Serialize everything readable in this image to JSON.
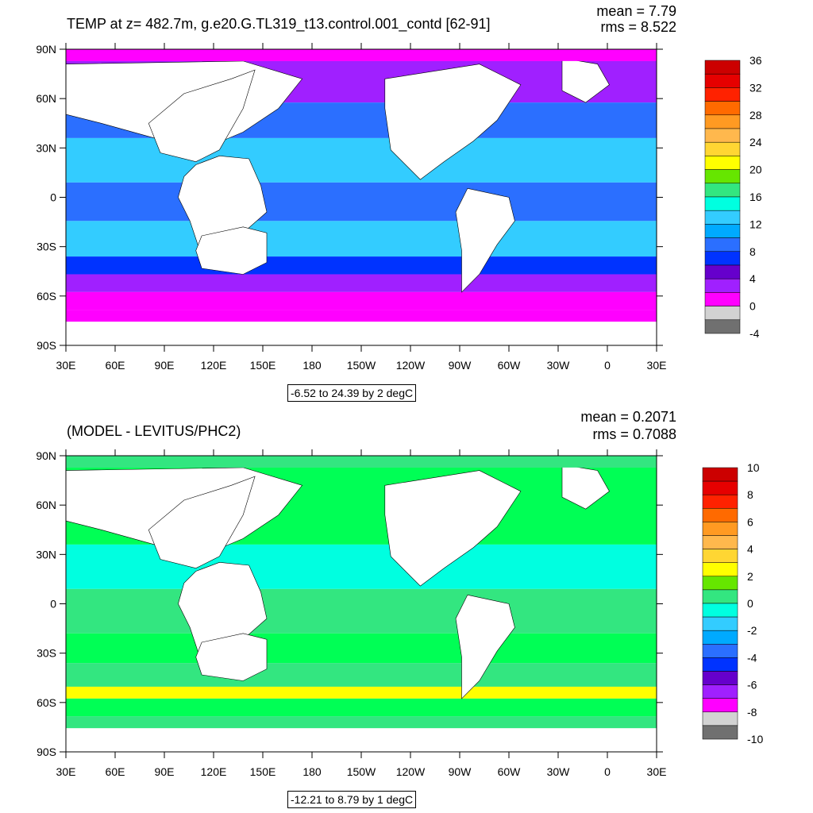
{
  "panels": [
    {
      "title": "TEMP at z= 482.7m, g.e20.G.TL319_t13.control.001_contd [62-91]",
      "mean": "mean = 7.79",
      "rms": "rms = 8.522",
      "range_note": "-6.52 to 24.39 by 2 degC",
      "colorbar_labels": [
        "36",
        "32",
        "28",
        "24",
        "20",
        "16",
        "12",
        "8",
        "4",
        "0",
        "-4"
      ],
      "colorbar_colors": [
        "#cc0000",
        "#e60000",
        "#ff2200",
        "#ff6a00",
        "#ff9a22",
        "#ffb84d",
        "#ffd633",
        "#ffff00",
        "#66e600",
        "#33e680",
        "#00ffe0",
        "#33ccff",
        "#00aaff",
        "#2b6fff",
        "#0033ff",
        "#6600cc",
        "#a020ff",
        "#ff00ff",
        "#d2d2d2",
        "#707070"
      ]
    },
    {
      "title": "(MODEL - LEVITUS/PHC2)",
      "mean": "mean = 0.2071",
      "rms": "rms = 0.7088",
      "range_note": "-12.21 to 8.79 by 1 degC",
      "colorbar_labels": [
        "10",
        "8",
        "6",
        "4",
        "2",
        "0",
        "-2",
        "-4",
        "-6",
        "-8",
        "-10"
      ],
      "colorbar_colors": [
        "#cc0000",
        "#e60000",
        "#ff2200",
        "#ff6a00",
        "#ff9a22",
        "#ffb84d",
        "#ffd633",
        "#ffff00",
        "#66e600",
        "#33e680",
        "#00ffe0",
        "#33ccff",
        "#00aaff",
        "#2b6fff",
        "#0033ff",
        "#6600cc",
        "#a020ff",
        "#ff00ff",
        "#d2d2d2",
        "#707070"
      ]
    }
  ],
  "axes": {
    "lat_labels": [
      "90N",
      "60N",
      "30N",
      "0",
      "30S",
      "60S",
      "90S"
    ],
    "lon_labels": [
      "30E",
      "60E",
      "90E",
      "120E",
      "150E",
      "180",
      "150W",
      "120W",
      "90W",
      "60W",
      "30W",
      "0",
      "30E"
    ]
  },
  "colors": {
    "land": "#ffffff",
    "panel1_bands": [
      "#ff00ff",
      "#a020ff",
      "#0033ff",
      "#2b6fff",
      "#33ccff",
      "#00ffe0",
      "#33e680"
    ],
    "panel2_bands": [
      "#33e680",
      "#00ff55",
      "#00ffe0",
      "#33ccff",
      "#ffff00",
      "#a020ff"
    ]
  }
}
